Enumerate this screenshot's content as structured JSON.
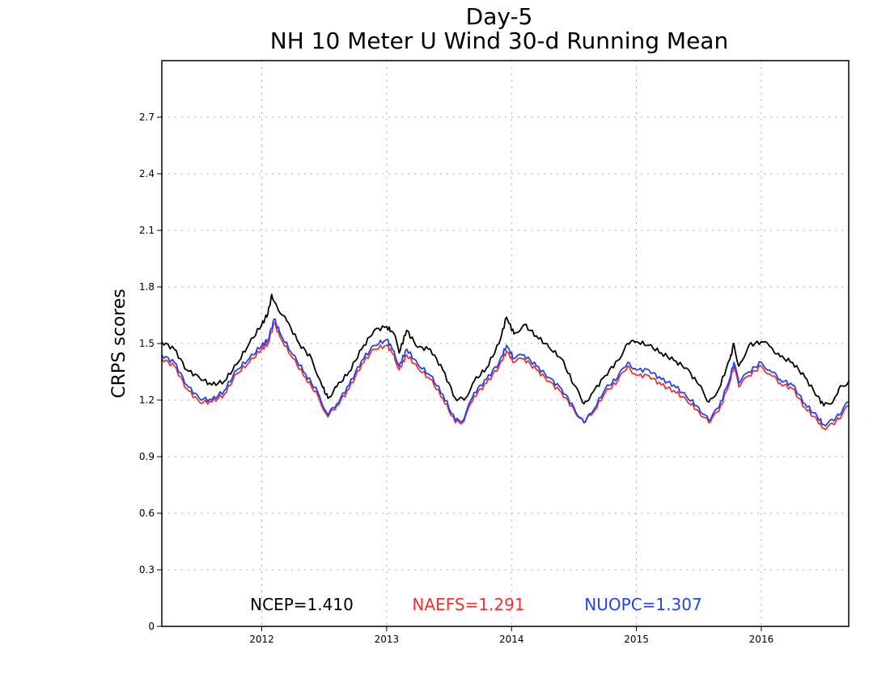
{
  "chart_data": {
    "type": "line",
    "title": "Day-5",
    "subtitle": "NH 10 Meter U Wind 30-d Running Mean",
    "xlabel": "",
    "ylabel": "CRPS scores",
    "xlim": [
      2011.2,
      2016.7
    ],
    "ylim": [
      0,
      3.0
    ],
    "x_ticks": [
      "2012",
      "2013",
      "2014",
      "2015",
      "2016"
    ],
    "x_tick_values": [
      2012,
      2013,
      2014,
      2015,
      2016
    ],
    "y_ticks": [
      "0",
      "0.3",
      "0.6",
      "0.9",
      "1.2",
      "1.5",
      "1.8",
      "2.1",
      "2.4",
      "2.7"
    ],
    "y_tick_values": [
      0,
      0.3,
      0.6,
      0.9,
      1.2,
      1.5,
      1.8,
      2.1,
      2.4,
      2.7
    ],
    "grid": true,
    "series": [
      {
        "name": "NCEP",
        "color": "#000000",
        "summary": "NCEP=1.410",
        "points": [
          [
            2011.2,
            1.51
          ],
          [
            2011.3,
            1.47
          ],
          [
            2011.4,
            1.36
          ],
          [
            2011.5,
            1.32
          ],
          [
            2011.6,
            1.28
          ],
          [
            2011.7,
            1.3
          ],
          [
            2011.8,
            1.39
          ],
          [
            2011.9,
            1.5
          ],
          [
            2012.0,
            1.6
          ],
          [
            2012.05,
            1.66
          ],
          [
            2012.08,
            1.76
          ],
          [
            2012.12,
            1.7
          ],
          [
            2012.2,
            1.62
          ],
          [
            2012.3,
            1.5
          ],
          [
            2012.4,
            1.42
          ],
          [
            2012.48,
            1.28
          ],
          [
            2012.53,
            1.21
          ],
          [
            2012.6,
            1.27
          ],
          [
            2012.7,
            1.35
          ],
          [
            2012.8,
            1.47
          ],
          [
            2012.9,
            1.57
          ],
          [
            2013.0,
            1.59
          ],
          [
            2013.06,
            1.55
          ],
          [
            2013.1,
            1.45
          ],
          [
            2013.16,
            1.57
          ],
          [
            2013.25,
            1.48
          ],
          [
            2013.35,
            1.47
          ],
          [
            2013.45,
            1.36
          ],
          [
            2013.55,
            1.21
          ],
          [
            2013.62,
            1.2
          ],
          [
            2013.7,
            1.3
          ],
          [
            2013.8,
            1.37
          ],
          [
            2013.9,
            1.5
          ],
          [
            2013.96,
            1.64
          ],
          [
            2014.02,
            1.55
          ],
          [
            2014.1,
            1.6
          ],
          [
            2014.2,
            1.54
          ],
          [
            2014.3,
            1.48
          ],
          [
            2014.4,
            1.42
          ],
          [
            2014.5,
            1.28
          ],
          [
            2014.58,
            1.18
          ],
          [
            2014.65,
            1.24
          ],
          [
            2014.75,
            1.33
          ],
          [
            2014.85,
            1.41
          ],
          [
            2014.93,
            1.5
          ],
          [
            2015.0,
            1.51
          ],
          [
            2015.1,
            1.49
          ],
          [
            2015.2,
            1.45
          ],
          [
            2015.3,
            1.41
          ],
          [
            2015.4,
            1.37
          ],
          [
            2015.5,
            1.28
          ],
          [
            2015.58,
            1.19
          ],
          [
            2015.66,
            1.26
          ],
          [
            2015.75,
            1.42
          ],
          [
            2015.78,
            1.5
          ],
          [
            2015.82,
            1.38
          ],
          [
            2015.9,
            1.49
          ],
          [
            2016.0,
            1.51
          ],
          [
            2016.08,
            1.48
          ],
          [
            2016.15,
            1.43
          ],
          [
            2016.25,
            1.4
          ],
          [
            2016.35,
            1.32
          ],
          [
            2016.45,
            1.22
          ],
          [
            2016.5,
            1.17
          ],
          [
            2016.58,
            1.2
          ],
          [
            2016.62,
            1.26
          ],
          [
            2016.7,
            1.3
          ]
        ]
      },
      {
        "name": "NAEFS",
        "color": "#ee3333",
        "summary": "NAEFS=1.291",
        "points": [
          [
            2011.2,
            1.42
          ],
          [
            2011.3,
            1.38
          ],
          [
            2011.4,
            1.26
          ],
          [
            2011.5,
            1.19
          ],
          [
            2011.6,
            1.19
          ],
          [
            2011.7,
            1.23
          ],
          [
            2011.8,
            1.34
          ],
          [
            2011.9,
            1.4
          ],
          [
            2012.0,
            1.47
          ],
          [
            2012.05,
            1.5
          ],
          [
            2012.1,
            1.61
          ],
          [
            2012.15,
            1.53
          ],
          [
            2012.25,
            1.42
          ],
          [
            2012.35,
            1.32
          ],
          [
            2012.45,
            1.22
          ],
          [
            2012.53,
            1.11
          ],
          [
            2012.6,
            1.17
          ],
          [
            2012.7,
            1.26
          ],
          [
            2012.8,
            1.39
          ],
          [
            2012.9,
            1.47
          ],
          [
            2013.0,
            1.49
          ],
          [
            2013.06,
            1.44
          ],
          [
            2013.1,
            1.36
          ],
          [
            2013.16,
            1.44
          ],
          [
            2013.25,
            1.37
          ],
          [
            2013.35,
            1.31
          ],
          [
            2013.45,
            1.21
          ],
          [
            2013.55,
            1.08
          ],
          [
            2013.62,
            1.09
          ],
          [
            2013.7,
            1.22
          ],
          [
            2013.8,
            1.29
          ],
          [
            2013.9,
            1.38
          ],
          [
            2013.96,
            1.46
          ],
          [
            2014.02,
            1.4
          ],
          [
            2014.1,
            1.42
          ],
          [
            2014.2,
            1.36
          ],
          [
            2014.3,
            1.3
          ],
          [
            2014.4,
            1.24
          ],
          [
            2014.5,
            1.15
          ],
          [
            2014.58,
            1.08
          ],
          [
            2014.65,
            1.13
          ],
          [
            2014.75,
            1.24
          ],
          [
            2014.85,
            1.3
          ],
          [
            2014.93,
            1.38
          ],
          [
            2015.0,
            1.33
          ],
          [
            2015.1,
            1.33
          ],
          [
            2015.2,
            1.28
          ],
          [
            2015.3,
            1.25
          ],
          [
            2015.4,
            1.2
          ],
          [
            2015.5,
            1.14
          ],
          [
            2015.58,
            1.08
          ],
          [
            2015.66,
            1.14
          ],
          [
            2015.75,
            1.3
          ],
          [
            2015.78,
            1.38
          ],
          [
            2015.82,
            1.27
          ],
          [
            2015.9,
            1.33
          ],
          [
            2016.0,
            1.38
          ],
          [
            2016.08,
            1.33
          ],
          [
            2016.15,
            1.29
          ],
          [
            2016.25,
            1.26
          ],
          [
            2016.35,
            1.16
          ],
          [
            2016.45,
            1.09
          ],
          [
            2016.5,
            1.05
          ],
          [
            2016.58,
            1.07
          ],
          [
            2016.62,
            1.1
          ],
          [
            2016.7,
            1.17
          ]
        ]
      },
      {
        "name": "NUOPC",
        "color": "#2244ee",
        "summary": "NUOPC=1.307",
        "points": [
          [
            2011.2,
            1.44
          ],
          [
            2011.3,
            1.4
          ],
          [
            2011.4,
            1.28
          ],
          [
            2011.5,
            1.21
          ],
          [
            2011.6,
            1.2
          ],
          [
            2011.7,
            1.25
          ],
          [
            2011.8,
            1.36
          ],
          [
            2011.9,
            1.42
          ],
          [
            2012.0,
            1.49
          ],
          [
            2012.05,
            1.52
          ],
          [
            2012.1,
            1.63
          ],
          [
            2012.15,
            1.55
          ],
          [
            2012.25,
            1.44
          ],
          [
            2012.35,
            1.34
          ],
          [
            2012.45,
            1.24
          ],
          [
            2012.53,
            1.12
          ],
          [
            2012.6,
            1.18
          ],
          [
            2012.7,
            1.28
          ],
          [
            2012.8,
            1.41
          ],
          [
            2012.9,
            1.49
          ],
          [
            2013.0,
            1.52
          ],
          [
            2013.06,
            1.46
          ],
          [
            2013.1,
            1.38
          ],
          [
            2013.16,
            1.47
          ],
          [
            2013.25,
            1.39
          ],
          [
            2013.35,
            1.33
          ],
          [
            2013.45,
            1.23
          ],
          [
            2013.55,
            1.09
          ],
          [
            2013.62,
            1.1
          ],
          [
            2013.7,
            1.24
          ],
          [
            2013.8,
            1.31
          ],
          [
            2013.9,
            1.4
          ],
          [
            2013.96,
            1.49
          ],
          [
            2014.02,
            1.42
          ],
          [
            2014.1,
            1.44
          ],
          [
            2014.2,
            1.38
          ],
          [
            2014.3,
            1.32
          ],
          [
            2014.4,
            1.26
          ],
          [
            2014.5,
            1.16
          ],
          [
            2014.58,
            1.08
          ],
          [
            2014.65,
            1.14
          ],
          [
            2014.75,
            1.26
          ],
          [
            2014.85,
            1.32
          ],
          [
            2014.93,
            1.4
          ],
          [
            2015.0,
            1.36
          ],
          [
            2015.1,
            1.36
          ],
          [
            2015.2,
            1.31
          ],
          [
            2015.3,
            1.28
          ],
          [
            2015.4,
            1.22
          ],
          [
            2015.5,
            1.16
          ],
          [
            2015.58,
            1.09
          ],
          [
            2015.66,
            1.16
          ],
          [
            2015.75,
            1.32
          ],
          [
            2015.78,
            1.4
          ],
          [
            2015.82,
            1.29
          ],
          [
            2015.9,
            1.35
          ],
          [
            2016.0,
            1.4
          ],
          [
            2016.08,
            1.35
          ],
          [
            2016.15,
            1.31
          ],
          [
            2016.25,
            1.28
          ],
          [
            2016.35,
            1.18
          ],
          [
            2016.45,
            1.11
          ],
          [
            2016.5,
            1.07
          ],
          [
            2016.58,
            1.09
          ],
          [
            2016.62,
            1.12
          ],
          [
            2016.7,
            1.19
          ]
        ]
      }
    ]
  }
}
